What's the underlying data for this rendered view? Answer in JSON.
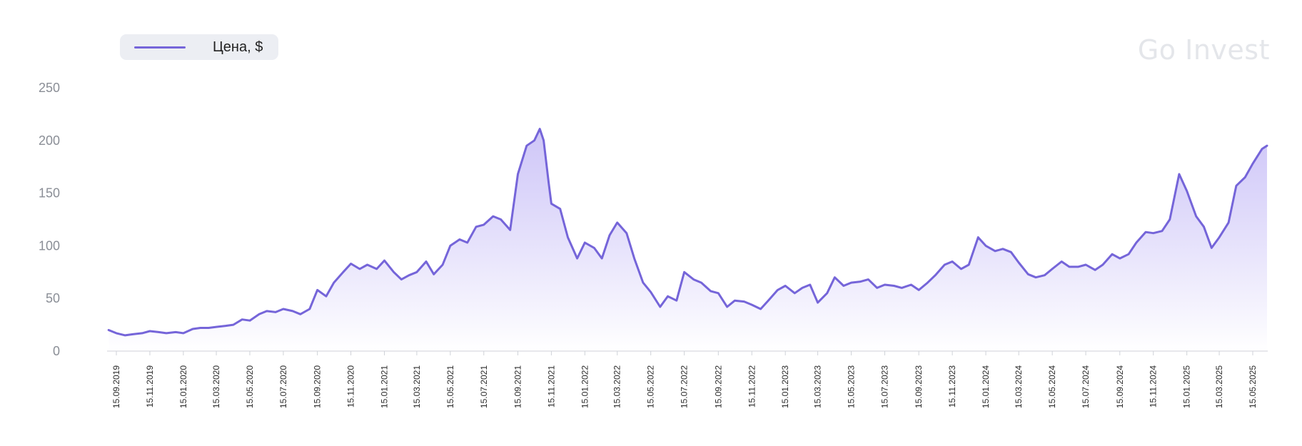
{
  "legend": {
    "label": "Цена, $"
  },
  "watermark": "Go Invest",
  "colors": {
    "line": "#7565d9",
    "fill_top": "#c9c0f7",
    "fill_bottom": "#ffffff",
    "axis": "#cfd2d8",
    "legend_bg": "#eceef3"
  },
  "chart_data": {
    "type": "area",
    "title": "",
    "xlabel": "",
    "ylabel": "",
    "ylim": [
      0,
      250
    ],
    "yticks": [
      0,
      50,
      100,
      150,
      200,
      250
    ],
    "grid": false,
    "legend_position": "top-left",
    "x_tick_labels": [
      "15.09.2019",
      "15.11.2019",
      "15.01.2020",
      "15.03.2020",
      "15.05.2020",
      "15.07.2020",
      "15.09.2020",
      "15.11.2020",
      "15.01.2021",
      "15.03.2021",
      "15.05.2021",
      "15.07.2021",
      "15.09.2021",
      "15.11.2021",
      "15.01.2022",
      "15.03.2022",
      "15.05.2022",
      "15.07.2022",
      "15.09.2022",
      "15.11.2022",
      "15.01.2023",
      "15.03.2023",
      "15.05.2023",
      "15.07.2023",
      "15.09.2023",
      "15.11.2023",
      "15.01.2024",
      "15.03.2024",
      "15.05.2024",
      "15.07.2024",
      "15.09.2024",
      "15.11.2024",
      "15.01.2025",
      "15.03.2025",
      "15.05.2025"
    ],
    "series": [
      {
        "name": "Цена, $",
        "points": [
          [
            "2019-09-01",
            20
          ],
          [
            "2019-09-15",
            17
          ],
          [
            "2019-10-01",
            15
          ],
          [
            "2019-10-15",
            16
          ],
          [
            "2019-11-01",
            17
          ],
          [
            "2019-11-15",
            19
          ],
          [
            "2019-12-01",
            18
          ],
          [
            "2019-12-15",
            17
          ],
          [
            "2020-01-01",
            18
          ],
          [
            "2020-01-15",
            17
          ],
          [
            "2020-02-01",
            21
          ],
          [
            "2020-02-15",
            22
          ],
          [
            "2020-03-01",
            22
          ],
          [
            "2020-03-15",
            23
          ],
          [
            "2020-04-01",
            24
          ],
          [
            "2020-04-15",
            25
          ],
          [
            "2020-05-01",
            30
          ],
          [
            "2020-05-15",
            29
          ],
          [
            "2020-06-01",
            35
          ],
          [
            "2020-06-15",
            38
          ],
          [
            "2020-07-01",
            37
          ],
          [
            "2020-07-15",
            40
          ],
          [
            "2020-08-01",
            38
          ],
          [
            "2020-08-15",
            35
          ],
          [
            "2020-09-01",
            40
          ],
          [
            "2020-09-15",
            58
          ],
          [
            "2020-10-01",
            52
          ],
          [
            "2020-10-15",
            65
          ],
          [
            "2020-11-01",
            75
          ],
          [
            "2020-11-15",
            83
          ],
          [
            "2020-12-01",
            78
          ],
          [
            "2020-12-15",
            82
          ],
          [
            "2021-01-01",
            78
          ],
          [
            "2021-01-15",
            86
          ],
          [
            "2021-02-01",
            75
          ],
          [
            "2021-02-15",
            68
          ],
          [
            "2021-03-01",
            72
          ],
          [
            "2021-03-15",
            75
          ],
          [
            "2021-04-01",
            85
          ],
          [
            "2021-04-15",
            73
          ],
          [
            "2021-05-01",
            82
          ],
          [
            "2021-05-15",
            100
          ],
          [
            "2021-06-01",
            106
          ],
          [
            "2021-06-15",
            103
          ],
          [
            "2021-07-01",
            118
          ],
          [
            "2021-07-15",
            120
          ],
          [
            "2021-08-01",
            128
          ],
          [
            "2021-08-15",
            125
          ],
          [
            "2021-09-01",
            115
          ],
          [
            "2021-09-15",
            168
          ],
          [
            "2021-10-01",
            195
          ],
          [
            "2021-10-15",
            200
          ],
          [
            "2021-10-25",
            211
          ],
          [
            "2021-11-01",
            200
          ],
          [
            "2021-11-10",
            160
          ],
          [
            "2021-11-15",
            140
          ],
          [
            "2021-12-01",
            135
          ],
          [
            "2021-12-15",
            108
          ],
          [
            "2022-01-01",
            88
          ],
          [
            "2022-01-15",
            103
          ],
          [
            "2022-02-01",
            98
          ],
          [
            "2022-02-15",
            88
          ],
          [
            "2022-03-01",
            110
          ],
          [
            "2022-03-15",
            122
          ],
          [
            "2022-04-01",
            112
          ],
          [
            "2022-04-15",
            88
          ],
          [
            "2022-05-01",
            65
          ],
          [
            "2022-05-15",
            56
          ],
          [
            "2022-06-01",
            42
          ],
          [
            "2022-06-15",
            52
          ],
          [
            "2022-07-01",
            48
          ],
          [
            "2022-07-15",
            75
          ],
          [
            "2022-08-01",
            68
          ],
          [
            "2022-08-15",
            65
          ],
          [
            "2022-09-01",
            57
          ],
          [
            "2022-09-15",
            55
          ],
          [
            "2022-10-01",
            42
          ],
          [
            "2022-10-15",
            48
          ],
          [
            "2022-11-01",
            47
          ],
          [
            "2022-11-15",
            44
          ],
          [
            "2022-12-01",
            40
          ],
          [
            "2022-12-15",
            48
          ],
          [
            "2023-01-01",
            58
          ],
          [
            "2023-01-15",
            62
          ],
          [
            "2023-02-01",
            55
          ],
          [
            "2023-02-15",
            60
          ],
          [
            "2023-03-01",
            63
          ],
          [
            "2023-03-15",
            46
          ],
          [
            "2023-04-01",
            55
          ],
          [
            "2023-04-15",
            70
          ],
          [
            "2023-05-01",
            62
          ],
          [
            "2023-05-15",
            65
          ],
          [
            "2023-06-01",
            66
          ],
          [
            "2023-06-15",
            68
          ],
          [
            "2023-07-01",
            60
          ],
          [
            "2023-07-15",
            63
          ],
          [
            "2023-08-01",
            62
          ],
          [
            "2023-08-15",
            60
          ],
          [
            "2023-09-01",
            63
          ],
          [
            "2023-09-15",
            58
          ],
          [
            "2023-10-01",
            65
          ],
          [
            "2023-10-15",
            72
          ],
          [
            "2023-11-01",
            82
          ],
          [
            "2023-11-15",
            85
          ],
          [
            "2023-12-01",
            78
          ],
          [
            "2023-12-15",
            82
          ],
          [
            "2024-01-01",
            108
          ],
          [
            "2024-01-15",
            100
          ],
          [
            "2024-02-01",
            95
          ],
          [
            "2024-02-15",
            97
          ],
          [
            "2024-03-01",
            94
          ],
          [
            "2024-03-15",
            84
          ],
          [
            "2024-04-01",
            73
          ],
          [
            "2024-04-15",
            70
          ],
          [
            "2024-05-01",
            72
          ],
          [
            "2024-05-15",
            78
          ],
          [
            "2024-06-01",
            85
          ],
          [
            "2024-06-15",
            80
          ],
          [
            "2024-07-01",
            80
          ],
          [
            "2024-07-15",
            82
          ],
          [
            "2024-08-01",
            77
          ],
          [
            "2024-08-15",
            82
          ],
          [
            "2024-09-01",
            92
          ],
          [
            "2024-09-15",
            88
          ],
          [
            "2024-10-01",
            92
          ],
          [
            "2024-10-15",
            103
          ],
          [
            "2024-11-01",
            113
          ],
          [
            "2024-11-15",
            112
          ],
          [
            "2024-12-01",
            114
          ],
          [
            "2024-12-15",
            125
          ],
          [
            "2025-01-01",
            168
          ],
          [
            "2025-01-15",
            152
          ],
          [
            "2025-02-01",
            128
          ],
          [
            "2025-02-15",
            118
          ],
          [
            "2025-03-01",
            98
          ],
          [
            "2025-03-15",
            108
          ],
          [
            "2025-04-01",
            122
          ],
          [
            "2025-04-15",
            157
          ],
          [
            "2025-05-01",
            165
          ],
          [
            "2025-05-15",
            178
          ],
          [
            "2025-06-01",
            192
          ],
          [
            "2025-06-10",
            195
          ]
        ]
      }
    ]
  }
}
